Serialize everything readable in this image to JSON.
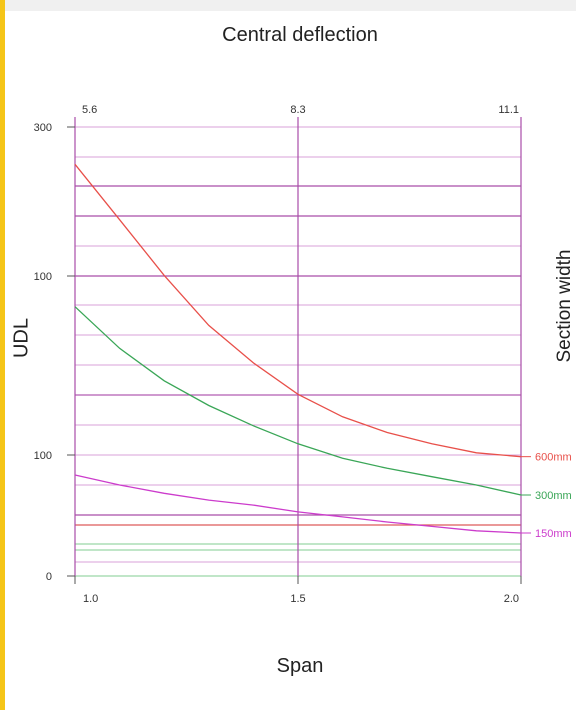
{
  "chart_data": {
    "type": "line",
    "title": "Central deflection",
    "xlabel": "Span",
    "ylabel": "UDL",
    "y2label": "Section width",
    "xlim": [
      1.0,
      2.0
    ],
    "x_ticks": [
      "1.0",
      "1.5",
      "2.0"
    ],
    "x_top_ticks": [
      "5.6",
      "8.3",
      "11.1"
    ],
    "y_ticks": [
      "300",
      "100",
      "100",
      "0"
    ],
    "grid": true,
    "series": [
      {
        "name": "600mm",
        "color": "#e8504a",
        "x": [
          1.0,
          1.1,
          1.2,
          1.3,
          1.4,
          1.5,
          1.6,
          1.7,
          1.8,
          1.9,
          2.0
        ],
        "y": [
          267,
          218,
          183,
          159,
          141,
          127,
          117,
          110,
          105,
          101,
          99
        ]
      },
      {
        "name": "300mm",
        "color": "#3aa657",
        "x": [
          1.0,
          1.1,
          1.2,
          1.3,
          1.4,
          1.5,
          1.6,
          1.7,
          1.8,
          1.9,
          2.0
        ],
        "y": [
          168,
          148,
          133,
          122,
          113,
          105,
          98,
          92,
          87,
          82,
          76
        ]
      },
      {
        "name": "150mm",
        "color": "#cc3ccc",
        "x": [
          1.0,
          1.1,
          1.2,
          1.3,
          1.4,
          1.5,
          1.6,
          1.7,
          1.8,
          1.9,
          2.0
        ],
        "y": [
          88,
          82,
          77,
          73,
          70,
          66,
          63,
          60,
          58,
          56,
          55
        ]
      }
    ]
  }
}
